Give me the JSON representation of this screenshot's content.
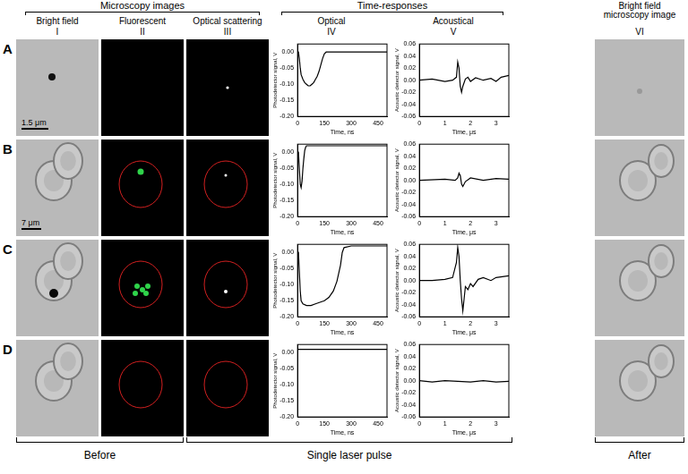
{
  "groups": [
    "Microscopy images",
    "Time-responses"
  ],
  "columns": [
    {
      "title": "Bright field",
      "numeral": "I"
    },
    {
      "title": "Fluorescent",
      "numeral": "II"
    },
    {
      "title": "Optical scattering",
      "numeral": "III"
    },
    {
      "title": "Optical",
      "numeral": "IV"
    },
    {
      "title": "Acoustical",
      "numeral": "V"
    },
    {
      "title": "Bright field microscopy image",
      "numeral": "VI"
    }
  ],
  "rows": [
    {
      "label": "A",
      "scale_bar": "1.5 μm"
    },
    {
      "label": "B",
      "scale_bar": "7 μm"
    },
    {
      "label": "C"
    },
    {
      "label": "D"
    }
  ],
  "footer": [
    "Before",
    "Single laser pulse",
    "After"
  ],
  "chart_data": [
    {
      "type": "line",
      "x_label": "Time, ns",
      "y_label": "Photodetector signal, V",
      "color": "#000000",
      "grid": false,
      "x": [
        0,
        5,
        10,
        15,
        20,
        30,
        40,
        50,
        60,
        70,
        80,
        90,
        100,
        110,
        120,
        130,
        140,
        150,
        160,
        200,
        300,
        400,
        500
      ],
      "values": [
        0,
        0,
        -0.02,
        -0.05,
        -0.07,
        -0.085,
        -0.095,
        -0.1,
        -0.105,
        -0.105,
        -0.1,
        -0.095,
        -0.085,
        -0.075,
        -0.06,
        -0.04,
        -0.02,
        -0.005,
        0,
        0,
        0,
        0,
        0
      ],
      "xlim": [
        0,
        500
      ],
      "xticks": [
        0,
        150,
        300,
        450
      ],
      "ylim": [
        -0.2,
        0.025
      ],
      "yticks": [
        {
          "value": 0,
          "label": "0.00"
        },
        -0.05,
        {
          "value": -0.1,
          "label": "-0.10"
        },
        -0.15,
        {
          "value": -0.2,
          "label": "-0.20"
        }
      ]
    },
    {
      "type": "line",
      "x_label": "Time, μs",
      "y_label": "Acoustic detector signal, V",
      "color": "#000000",
      "grid": false,
      "x": [
        0,
        0.5,
        1,
        1.3,
        1.45,
        1.5,
        1.55,
        1.6,
        1.65,
        1.7,
        1.8,
        1.9,
        2.0,
        2.2,
        2.5,
        2.8,
        3.0,
        3.2,
        3.5
      ],
      "values": [
        0,
        0.002,
        -0.002,
        0,
        0.005,
        0.03,
        0.02,
        -0.01,
        -0.02,
        -0.01,
        0.002,
        0.005,
        -0.002,
        0.004,
        0,
        0.003,
        -0.002,
        0.005,
        0.008
      ],
      "xlim": [
        0,
        3.5
      ],
      "xticks": [
        0,
        1,
        2,
        3
      ],
      "ylim": [
        -0.06,
        0.06
      ],
      "yticks": [
        0.06,
        0.04,
        0.02,
        {
          "value": 0,
          "label": "0.00"
        },
        -0.02,
        -0.04,
        -0.06
      ]
    },
    {
      "type": "line",
      "x_label": "Time, ns",
      "y_label": "Photodetector signal, V",
      "color": "#000000",
      "grid": false,
      "x": [
        0,
        5,
        10,
        15,
        20,
        25,
        30,
        35,
        40,
        45,
        50,
        60,
        80,
        100,
        150,
        200,
        300,
        400,
        500
      ],
      "values": [
        0,
        0,
        -0.05,
        -0.1,
        -0.11,
        -0.09,
        -0.05,
        -0.02,
        0.005,
        0.015,
        0.02,
        0.02,
        0.02,
        0.02,
        0.02,
        0.02,
        0.02,
        0.02,
        0.02
      ],
      "xlim": [
        0,
        500
      ],
      "xticks": [
        0,
        150,
        300,
        450
      ],
      "ylim": [
        -0.2,
        0.025
      ],
      "yticks": [
        {
          "value": 0,
          "label": "0.00"
        },
        -0.05,
        {
          "value": -0.1,
          "label": "-0.10"
        },
        -0.15,
        {
          "value": -0.2,
          "label": "-0.20"
        }
      ]
    },
    {
      "type": "line",
      "x_label": "Time, μs",
      "y_label": "Acoustic detector signal, V",
      "color": "#000000",
      "grid": false,
      "x": [
        0,
        1,
        1.4,
        1.5,
        1.55,
        1.6,
        1.65,
        1.7,
        1.8,
        2.0,
        2.5,
        3.0,
        3.5
      ],
      "values": [
        0,
        0.002,
        0,
        0.004,
        0.012,
        0.008,
        -0.006,
        -0.01,
        -0.002,
        0.004,
        0,
        0.003,
        0.002
      ],
      "xlim": [
        0,
        3.5
      ],
      "xticks": [
        0,
        1,
        2,
        3
      ],
      "ylim": [
        -0.06,
        0.06
      ],
      "yticks": [
        0.06,
        0.04,
        0.02,
        {
          "value": 0,
          "label": "0.00"
        },
        -0.02,
        -0.04,
        -0.06
      ]
    },
    {
      "type": "line",
      "x_label": "Time, ns",
      "y_label": "Photodetector signal, V",
      "color": "#000000",
      "grid": false,
      "x": [
        0,
        5,
        10,
        15,
        20,
        30,
        50,
        75,
        100,
        125,
        150,
        175,
        200,
        220,
        240,
        250,
        260,
        300,
        400,
        500
      ],
      "values": [
        0,
        0,
        -0.06,
        -0.12,
        -0.15,
        -0.16,
        -0.165,
        -0.165,
        -0.16,
        -0.155,
        -0.15,
        -0.14,
        -0.12,
        -0.09,
        -0.04,
        0,
        0.015,
        0.02,
        0.02,
        0.02
      ],
      "xlim": [
        0,
        500
      ],
      "xticks": [
        0,
        150,
        300,
        450
      ],
      "ylim": [
        -0.2,
        0.025
      ],
      "yticks": [
        {
          "value": 0,
          "label": "0.00"
        },
        -0.05,
        {
          "value": -0.1,
          "label": "-0.10"
        },
        -0.15,
        {
          "value": -0.2,
          "label": "-0.20"
        }
      ]
    },
    {
      "type": "line",
      "x_label": "Time, μs",
      "y_label": "Acoustic detector signal, V",
      "color": "#000000",
      "grid": false,
      "x": [
        0,
        0.5,
        1,
        1.3,
        1.45,
        1.5,
        1.55,
        1.6,
        1.65,
        1.7,
        1.75,
        1.8,
        1.9,
        2.0,
        2.1,
        2.3,
        2.5,
        2.8,
        3.0,
        3.5
      ],
      "values": [
        0,
        0,
        0.002,
        0.005,
        0.03,
        0.055,
        0.04,
        0,
        -0.03,
        -0.05,
        -0.03,
        -0.01,
        -0.015,
        -0.005,
        -0.01,
        0.002,
        0.005,
        0,
        0.005,
        0.008
      ],
      "xlim": [
        0,
        3.5
      ],
      "xticks": [
        0,
        1,
        2,
        3
      ],
      "ylim": [
        -0.06,
        0.06
      ],
      "yticks": [
        0.06,
        0.04,
        0.02,
        {
          "value": 0,
          "label": "0.00"
        },
        -0.02,
        -0.04,
        -0.06
      ]
    },
    {
      "type": "line",
      "x_label": "Time, ns",
      "y_label": "Photodetector signal, V",
      "color": "#000000",
      "grid": false,
      "x": [
        0,
        100,
        200,
        300,
        400,
        500
      ],
      "values": [
        0.01,
        0.01,
        0.01,
        0.01,
        0.01,
        0.01
      ],
      "xlim": [
        0,
        500
      ],
      "xticks": [
        0,
        150,
        300,
        450
      ],
      "ylim": [
        -0.2,
        0.025
      ],
      "yticks": [
        {
          "value": 0,
          "label": "0.00"
        },
        -0.05,
        {
          "value": -0.1,
          "label": "-0.10"
        },
        -0.15,
        {
          "value": -0.2,
          "label": "-0.20"
        }
      ]
    },
    {
      "type": "line",
      "x_label": "Time, μs",
      "y_label": "Acoustic detector signal, V",
      "color": "#000000",
      "grid": false,
      "x": [
        0,
        0.5,
        1,
        1.5,
        2,
        2.5,
        3,
        3.5
      ],
      "values": [
        0,
        -0.002,
        0,
        -0.001,
        -0.002,
        0,
        -0.002,
        -0.001
      ],
      "xlim": [
        0,
        3.5
      ],
      "xticks": [
        0,
        1,
        2,
        3
      ],
      "ylim": [
        -0.06,
        0.06
      ],
      "yticks": [
        0.06,
        0.04,
        0.02,
        {
          "value": 0,
          "label": "0.00"
        },
        -0.02,
        -0.04,
        -0.06
      ]
    }
  ]
}
